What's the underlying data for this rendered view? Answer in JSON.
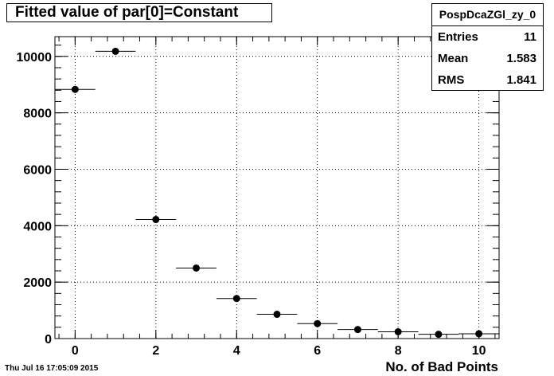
{
  "chart_data": {
    "type": "scatter",
    "title": "Fitted value of par[0]=Constant",
    "xlabel": "No. of Bad Points",
    "ylabel": "",
    "xlim": [
      -0.5,
      10.5
    ],
    "ylim": [
      0,
      10700
    ],
    "x_ticks": [
      0,
      2,
      4,
      6,
      8,
      10
    ],
    "y_ticks": [
      0,
      2000,
      4000,
      6000,
      8000,
      10000
    ],
    "grid": true,
    "x_bin_halfwidth": 0.5,
    "series": [
      {
        "x": [
          0,
          1,
          2,
          3,
          4,
          5,
          6,
          7,
          8,
          9,
          10
        ],
        "values": [
          8830,
          10180,
          4220,
          2500,
          1420,
          860,
          530,
          320,
          240,
          150,
          170
        ]
      }
    ],
    "stats": {
      "name": "PospDcaZGl_zy_0",
      "entries_label": "Entries",
      "entries_value": "11",
      "mean_label": "Mean",
      "mean_value": "1.583",
      "rms_label": "RMS",
      "rms_value": "1.841"
    }
  },
  "footer": {
    "timestamp": "Thu Jul 16 17:05:09 2015"
  },
  "colors": {
    "marker": "#000000",
    "grid": "#000000",
    "background": "#ffffff"
  }
}
